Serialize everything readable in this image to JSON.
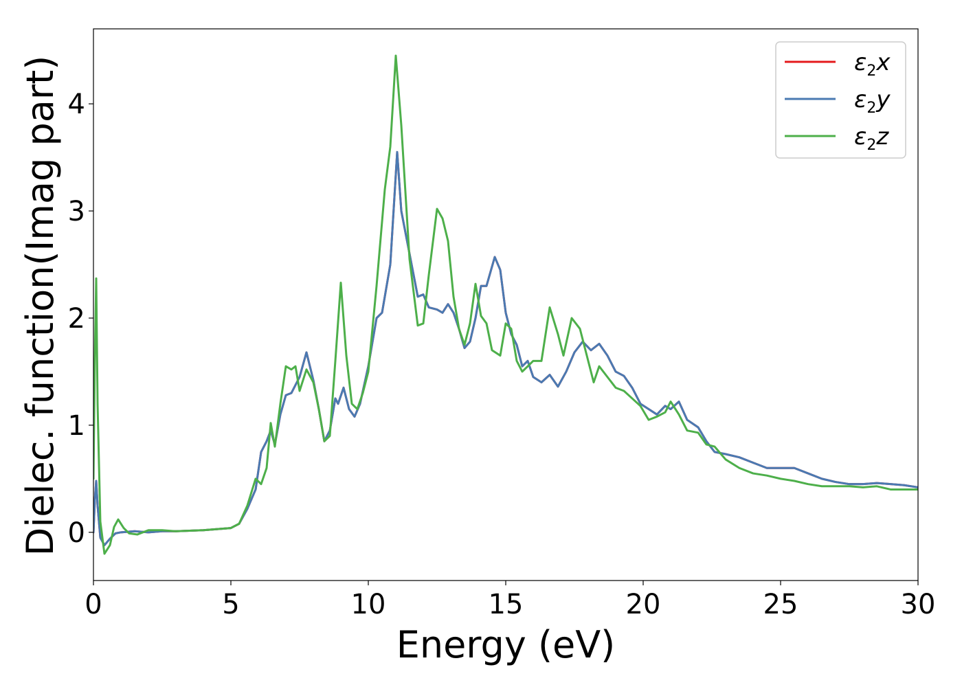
{
  "chart_data": {
    "type": "line",
    "title": "",
    "xlabel": "Energy (eV)",
    "ylabel": "Dielec. function(Imag part)",
    "xlim": [
      0,
      30
    ],
    "ylim": [
      -0.45,
      4.7
    ],
    "x_ticks": [
      0,
      5,
      10,
      15,
      20,
      25,
      30
    ],
    "y_ticks": [
      0,
      1,
      2,
      3,
      4
    ],
    "grid": false,
    "legend_position": "top-right",
    "series": [
      {
        "name": "ε2x",
        "color": "#e41a1c",
        "x": [
          0.0,
          0.05,
          0.1,
          0.15,
          0.25,
          0.4,
          0.6,
          0.8,
          1.0,
          1.5,
          2.0,
          2.5,
          3.0,
          4.0,
          5.0,
          5.3,
          5.6,
          5.9,
          6.1,
          6.3,
          6.45,
          6.6,
          6.8,
          7.0,
          7.2,
          7.5,
          7.75,
          8.0,
          8.2,
          8.4,
          8.6,
          8.8,
          8.9,
          9.1,
          9.3,
          9.5,
          9.7,
          10.0,
          10.3,
          10.5,
          10.8,
          11.05,
          11.2,
          11.5,
          11.8,
          12.0,
          12.2,
          12.5,
          12.7,
          12.9,
          13.1,
          13.3,
          13.5,
          13.7,
          13.9,
          14.1,
          14.3,
          14.6,
          14.8,
          15.0,
          15.2,
          15.4,
          15.6,
          15.8,
          16.0,
          16.3,
          16.6,
          16.9,
          17.2,
          17.5,
          17.8,
          18.1,
          18.4,
          18.7,
          19.0,
          19.3,
          19.6,
          19.9,
          20.2,
          20.5,
          20.8,
          21.0,
          21.3,
          21.6,
          22.0,
          22.3,
          22.6,
          23.0,
          23.5,
          24.0,
          24.5,
          25.0,
          25.5,
          26.0,
          26.5,
          27.0,
          27.5,
          28.0,
          28.5,
          29.0,
          29.5,
          30.0
        ],
        "y": [
          0.0,
          0.3,
          0.48,
          0.25,
          -0.05,
          -0.12,
          -0.06,
          -0.01,
          0.0,
          0.01,
          0.0,
          0.01,
          0.01,
          0.02,
          0.04,
          0.08,
          0.22,
          0.4,
          0.75,
          0.85,
          0.95,
          0.82,
          1.1,
          1.28,
          1.3,
          1.45,
          1.68,
          1.42,
          1.15,
          0.85,
          0.95,
          1.25,
          1.2,
          1.35,
          1.15,
          1.08,
          1.2,
          1.55,
          2.0,
          2.05,
          2.5,
          3.55,
          3.0,
          2.6,
          2.2,
          2.22,
          2.1,
          2.08,
          2.05,
          2.13,
          2.05,
          1.9,
          1.72,
          1.78,
          2.0,
          2.3,
          2.3,
          2.57,
          2.45,
          2.05,
          1.85,
          1.75,
          1.55,
          1.6,
          1.45,
          1.4,
          1.47,
          1.36,
          1.5,
          1.68,
          1.78,
          1.7,
          1.76,
          1.65,
          1.5,
          1.46,
          1.35,
          1.2,
          1.15,
          1.1,
          1.18,
          1.15,
          1.22,
          1.05,
          0.98,
          0.85,
          0.75,
          0.73,
          0.7,
          0.65,
          0.6,
          0.6,
          0.6,
          0.55,
          0.5,
          0.47,
          0.45,
          0.45,
          0.46,
          0.45,
          0.44,
          0.42
        ]
      },
      {
        "name": "ε2y",
        "color": "#4a7ab2",
        "x": [
          0.0,
          0.05,
          0.1,
          0.15,
          0.25,
          0.4,
          0.6,
          0.8,
          1.0,
          1.5,
          2.0,
          2.5,
          3.0,
          4.0,
          5.0,
          5.3,
          5.6,
          5.9,
          6.1,
          6.3,
          6.45,
          6.6,
          6.8,
          7.0,
          7.2,
          7.5,
          7.75,
          8.0,
          8.2,
          8.4,
          8.6,
          8.8,
          8.9,
          9.1,
          9.3,
          9.5,
          9.7,
          10.0,
          10.3,
          10.5,
          10.8,
          11.05,
          11.2,
          11.5,
          11.8,
          12.0,
          12.2,
          12.5,
          12.7,
          12.9,
          13.1,
          13.3,
          13.5,
          13.7,
          13.9,
          14.1,
          14.3,
          14.6,
          14.8,
          15.0,
          15.2,
          15.4,
          15.6,
          15.8,
          16.0,
          16.3,
          16.6,
          16.9,
          17.2,
          17.5,
          17.8,
          18.1,
          18.4,
          18.7,
          19.0,
          19.3,
          19.6,
          19.9,
          20.2,
          20.5,
          20.8,
          21.0,
          21.3,
          21.6,
          22.0,
          22.3,
          22.6,
          23.0,
          23.5,
          24.0,
          24.5,
          25.0,
          25.5,
          26.0,
          26.5,
          27.0,
          27.5,
          28.0,
          28.5,
          29.0,
          29.5,
          30.0
        ],
        "y": [
          0.0,
          0.3,
          0.48,
          0.25,
          -0.05,
          -0.12,
          -0.06,
          -0.01,
          0.0,
          0.01,
          0.0,
          0.01,
          0.01,
          0.02,
          0.04,
          0.08,
          0.22,
          0.4,
          0.75,
          0.85,
          0.95,
          0.82,
          1.1,
          1.28,
          1.3,
          1.45,
          1.68,
          1.42,
          1.15,
          0.85,
          0.95,
          1.25,
          1.2,
          1.35,
          1.15,
          1.08,
          1.2,
          1.55,
          2.0,
          2.05,
          2.5,
          3.55,
          3.0,
          2.6,
          2.2,
          2.22,
          2.1,
          2.08,
          2.05,
          2.13,
          2.05,
          1.9,
          1.72,
          1.78,
          2.0,
          2.3,
          2.3,
          2.57,
          2.45,
          2.05,
          1.85,
          1.75,
          1.55,
          1.6,
          1.45,
          1.4,
          1.47,
          1.36,
          1.5,
          1.68,
          1.78,
          1.7,
          1.76,
          1.65,
          1.5,
          1.46,
          1.35,
          1.2,
          1.15,
          1.1,
          1.18,
          1.15,
          1.22,
          1.05,
          0.98,
          0.85,
          0.75,
          0.73,
          0.7,
          0.65,
          0.6,
          0.6,
          0.6,
          0.55,
          0.5,
          0.47,
          0.45,
          0.45,
          0.46,
          0.45,
          0.44,
          0.42
        ]
      },
      {
        "name": "ε2z",
        "color": "#4daf4a",
        "x": [
          0.0,
          0.05,
          0.1,
          0.15,
          0.25,
          0.4,
          0.6,
          0.75,
          0.9,
          1.1,
          1.3,
          1.6,
          2.0,
          2.5,
          3.0,
          4.0,
          5.0,
          5.3,
          5.6,
          5.9,
          6.1,
          6.3,
          6.45,
          6.6,
          6.8,
          7.0,
          7.2,
          7.35,
          7.5,
          7.75,
          8.0,
          8.2,
          8.4,
          8.6,
          8.8,
          9.0,
          9.2,
          9.4,
          9.6,
          9.8,
          10.0,
          10.3,
          10.6,
          10.8,
          11.0,
          11.2,
          11.5,
          11.8,
          12.0,
          12.2,
          12.5,
          12.7,
          12.9,
          13.1,
          13.3,
          13.5,
          13.7,
          13.9,
          14.1,
          14.3,
          14.5,
          14.8,
          15.0,
          15.2,
          15.4,
          15.6,
          15.8,
          16.0,
          16.3,
          16.6,
          16.9,
          17.1,
          17.4,
          17.7,
          18.0,
          18.2,
          18.4,
          18.7,
          19.0,
          19.3,
          19.6,
          19.9,
          20.2,
          20.5,
          20.8,
          21.0,
          21.3,
          21.6,
          22.0,
          22.3,
          22.6,
          23.0,
          23.5,
          24.0,
          24.5,
          25.0,
          25.5,
          26.0,
          26.5,
          27.0,
          27.5,
          28.0,
          28.5,
          29.0,
          29.5,
          30.0
        ],
        "y": [
          0.5,
          1.6,
          2.37,
          1.2,
          0.1,
          -0.2,
          -0.12,
          0.05,
          0.12,
          0.04,
          -0.01,
          -0.02,
          0.02,
          0.02,
          0.01,
          0.02,
          0.04,
          0.08,
          0.25,
          0.5,
          0.45,
          0.6,
          1.02,
          0.8,
          1.2,
          1.55,
          1.52,
          1.55,
          1.32,
          1.52,
          1.4,
          1.15,
          0.85,
          0.9,
          1.6,
          2.33,
          1.65,
          1.2,
          1.15,
          1.3,
          1.5,
          2.3,
          3.2,
          3.6,
          4.45,
          3.8,
          2.55,
          1.93,
          1.95,
          2.4,
          3.02,
          2.93,
          2.72,
          2.2,
          1.9,
          1.75,
          1.95,
          2.32,
          2.02,
          1.95,
          1.7,
          1.65,
          1.95,
          1.9,
          1.6,
          1.5,
          1.55,
          1.6,
          1.6,
          2.1,
          1.85,
          1.65,
          2.0,
          1.9,
          1.6,
          1.4,
          1.55,
          1.45,
          1.35,
          1.32,
          1.25,
          1.18,
          1.05,
          1.08,
          1.12,
          1.22,
          1.1,
          0.95,
          0.93,
          0.82,
          0.8,
          0.68,
          0.6,
          0.55,
          0.53,
          0.5,
          0.48,
          0.45,
          0.43,
          0.43,
          0.43,
          0.42,
          0.43,
          0.4,
          0.4,
          0.4
        ]
      }
    ]
  }
}
